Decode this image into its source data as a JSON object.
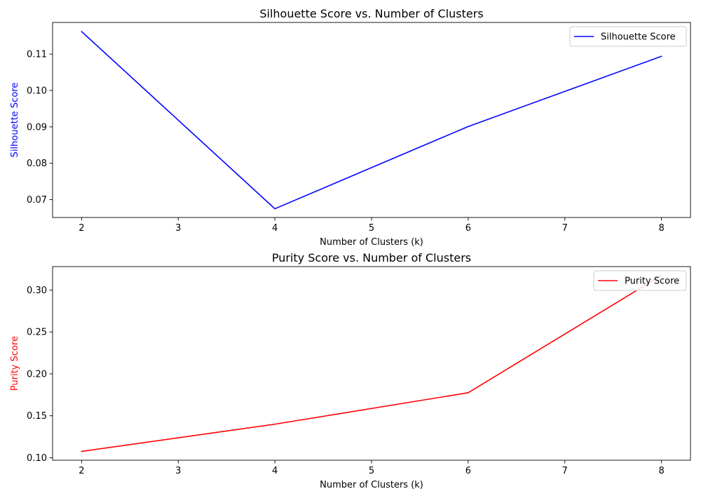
{
  "chart_data": [
    {
      "type": "line",
      "title": "Silhouette Score vs. Number of Clusters",
      "xlabel": "Number of Clusters (k)",
      "ylabel": "Silhouette Score",
      "ylabel_color": "#0000ff",
      "x": [
        2,
        4,
        6,
        8
      ],
      "series": [
        {
          "name": "Silhouette Score",
          "color": "#0000ff",
          "values": [
            0.1162,
            0.0675,
            0.0901,
            0.1094
          ]
        }
      ],
      "xlim": [
        1.7,
        8.3
      ],
      "ylim": [
        0.0651,
        0.1187
      ],
      "xticks": [
        2,
        3,
        4,
        5,
        6,
        7,
        8
      ],
      "yticks": [
        0.07,
        0.08,
        0.09,
        0.1,
        0.11
      ],
      "ytick_labels": [
        "0.07",
        "0.08",
        "0.09",
        "0.10",
        "0.11"
      ],
      "legend": {
        "position": "top-right",
        "label": "Silhouette Score"
      },
      "grid": false
    },
    {
      "type": "line",
      "title": "Purity Score vs. Number of Clusters",
      "xlabel": "Number of Clusters (k)",
      "ylabel": "Purity Score",
      "ylabel_color": "#ff0000",
      "x": [
        2,
        4,
        6,
        8
      ],
      "series": [
        {
          "name": "Purity Score",
          "color": "#ff0000",
          "values": [
            0.1075,
            0.14,
            0.1775,
            0.3175
          ]
        }
      ],
      "xlim": [
        1.7,
        8.3
      ],
      "ylim": [
        0.097,
        0.328
      ],
      "xticks": [
        2,
        3,
        4,
        5,
        6,
        7,
        8
      ],
      "yticks": [
        0.1,
        0.15,
        0.2,
        0.25,
        0.3
      ],
      "ytick_labels": [
        "0.10",
        "0.15",
        "0.20",
        "0.25",
        "0.30"
      ],
      "legend": {
        "position": "top-right",
        "label": "Purity Score"
      },
      "grid": false
    }
  ]
}
